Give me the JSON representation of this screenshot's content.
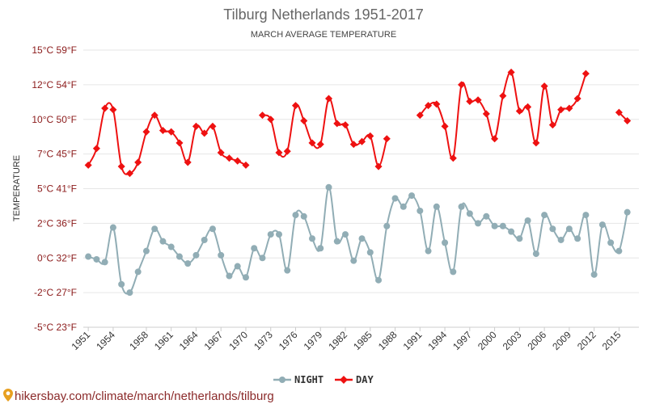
{
  "chart_data": {
    "type": "line",
    "title": "Tilburg Netherlands 1951-2017",
    "subtitle": "MARCH AVERAGE TEMPERATURE",
    "ylabel": "TEMPERATURE",
    "ylim": [
      -5,
      15
    ],
    "y_ticks": [
      {
        "value": 15,
        "label": "15°C 59°F"
      },
      {
        "value": 12.5,
        "label": "12°C 54°F"
      },
      {
        "value": 10,
        "label": "10°C 50°F"
      },
      {
        "value": 7.5,
        "label": "7°C 45°F"
      },
      {
        "value": 5,
        "label": "5°C 41°F"
      },
      {
        "value": 2.5,
        "label": "2°C 36°F"
      },
      {
        "value": 0,
        "label": "0°C 32°F"
      },
      {
        "value": -2.5,
        "label": "-2°C 27°F"
      },
      {
        "value": -5,
        "label": "-5°C 23°F"
      }
    ],
    "x": [
      1951,
      1952,
      1953,
      1954,
      1955,
      1956,
      1957,
      1958,
      1959,
      1960,
      1961,
      1962,
      1963,
      1964,
      1965,
      1966,
      1967,
      1968,
      1969,
      1970,
      1971,
      1972,
      1973,
      1974,
      1975,
      1976,
      1977,
      1978,
      1979,
      1980,
      1981,
      1982,
      1983,
      1984,
      1985,
      1986,
      1987,
      1988,
      1989,
      1990,
      1991,
      1992,
      1993,
      1994,
      1995,
      1996,
      1997,
      1998,
      1999,
      2000,
      2001,
      2002,
      2003,
      2004,
      2005,
      2006,
      2007,
      2008,
      2009,
      2010,
      2011,
      2012,
      2013,
      2014,
      2015,
      2016,
      2017
    ],
    "x_tick_labels": [
      "1951",
      "1954",
      "1958",
      "1961",
      "1964",
      "1967",
      "1970",
      "1973",
      "1976",
      "1979",
      "1982",
      "1985",
      "1988",
      "1991",
      "1994",
      "1997",
      "2000",
      "2003",
      "2006",
      "2009",
      "2012",
      "2015"
    ],
    "series": [
      {
        "name": "NIGHT",
        "color": "#91adb5",
        "values": [
          0.1,
          -0.1,
          -0.3,
          2.2,
          -1.9,
          -2.5,
          -1.0,
          0.5,
          2.1,
          1.2,
          0.8,
          0.1,
          -0.4,
          0.2,
          1.3,
          2.1,
          0.2,
          -1.3,
          -0.6,
          -1.4,
          0.7,
          0.0,
          1.7,
          1.7,
          -0.9,
          3.1,
          3.0,
          1.4,
          0.7,
          5.1,
          1.2,
          1.7,
          -0.2,
          1.4,
          0.4,
          -1.6,
          2.3,
          4.3,
          3.7,
          4.5,
          3.4,
          0.5,
          3.7,
          1.1,
          -1.0,
          3.7,
          3.2,
          2.5,
          3.0,
          2.3,
          2.3,
          1.9,
          1.4,
          2.7,
          0.3,
          3.1,
          2.1,
          1.3,
          2.1,
          1.4,
          3.1,
          -1.2,
          2.4,
          1.1,
          0.5,
          3.3,
          null
        ]
      },
      {
        "name": "DAY",
        "color": "#ee1111",
        "values": [
          6.7,
          7.9,
          10.8,
          10.7,
          6.6,
          6.1,
          6.9,
          9.1,
          10.3,
          9.2,
          9.1,
          8.3,
          6.9,
          9.5,
          9.0,
          9.5,
          7.6,
          7.2,
          7.0,
          6.7,
          null,
          10.3,
          10.0,
          7.6,
          7.7,
          11.0,
          9.9,
          8.3,
          8.2,
          11.5,
          9.7,
          9.6,
          8.2,
          8.4,
          8.8,
          6.6,
          8.6,
          null,
          null,
          null,
          10.3,
          11.0,
          11.1,
          9.5,
          7.2,
          12.5,
          11.3,
          11.4,
          10.4,
          8.6,
          11.7,
          13.4,
          10.6,
          10.9,
          8.3,
          12.4,
          9.6,
          10.7,
          10.8,
          11.5,
          13.3,
          null,
          null,
          null,
          10.5,
          9.9,
          null
        ]
      }
    ],
    "legend_position": "bottom-center",
    "grid": true
  },
  "legend_labels": [
    "NIGHT",
    "DAY"
  ],
  "source_text": "hikersbay.com/climate/march/netherlands/tilburg"
}
